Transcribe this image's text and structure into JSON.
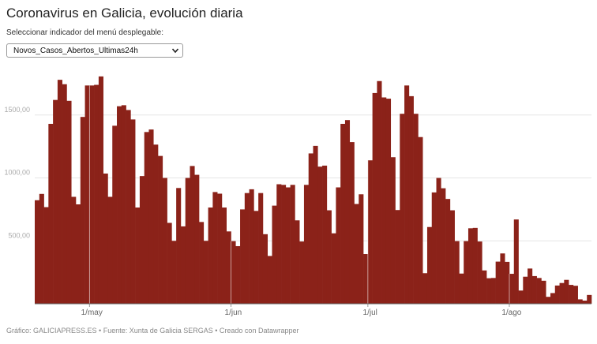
{
  "title": "Coronavirus en Galicia, evolución diaria",
  "subtitle": "Seleccionar indicador del menú desplegable:",
  "dropdown": {
    "selected": "Novos_Casos_Abertos_Ultimas24h",
    "arrow_icon": "chevron-down-icon"
  },
  "footer": "Gráfico: GALICIAPRESS.ES • Fuente: Xunta de Galicia SERGAS • Creado con Datawrapper",
  "colors": {
    "bar": "#8b2219",
    "grid": "#e6e6e6"
  },
  "chart_data": {
    "type": "bar",
    "title": "",
    "xlabel": "",
    "ylabel": "",
    "ylim": [
      0,
      1850
    ],
    "y_ticks": [
      {
        "value": 500,
        "label": "500,00"
      },
      {
        "value": 1000,
        "label": "1000,00"
      },
      {
        "value": 1500,
        "label": "1500,00"
      }
    ],
    "x_ticks": [
      {
        "index": 12,
        "label": "1/may"
      },
      {
        "index": 43,
        "label": "1/jun"
      },
      {
        "index": 73,
        "label": "1/jul"
      },
      {
        "index": 104,
        "label": "1/ago"
      }
    ],
    "values": [
      823,
      873,
      768,
      1430,
      1620,
      1780,
      1745,
      1613,
      850,
      790,
      1485,
      1735,
      1735,
      1740,
      1807,
      1035,
      850,
      1415,
      1570,
      1578,
      1540,
      1465,
      765,
      1015,
      1365,
      1385,
      1265,
      1175,
      1000,
      643,
      500,
      920,
      615,
      1000,
      1095,
      1025,
      650,
      500,
      765,
      888,
      875,
      765,
      575,
      498,
      458,
      750,
      880,
      910,
      738,
      880,
      553,
      380,
      780,
      950,
      945,
      925,
      945,
      663,
      495,
      945,
      1195,
      1255,
      1090,
      1098,
      743,
      560,
      925,
      1430,
      1460,
      1285,
      793,
      870,
      395,
      1140,
      1675,
      1770,
      1640,
      1630,
      1165,
      745,
      1510,
      1735,
      1650,
      1510,
      1325,
      243,
      610,
      885,
      1000,
      918,
      833,
      743,
      498,
      240,
      498,
      600,
      603,
      495,
      265,
      203,
      205,
      335,
      400,
      333,
      238,
      670,
      105,
      215,
      280,
      220,
      205,
      183,
      55,
      85,
      145,
      165,
      190,
      150,
      143,
      35,
      25,
      70
    ]
  }
}
